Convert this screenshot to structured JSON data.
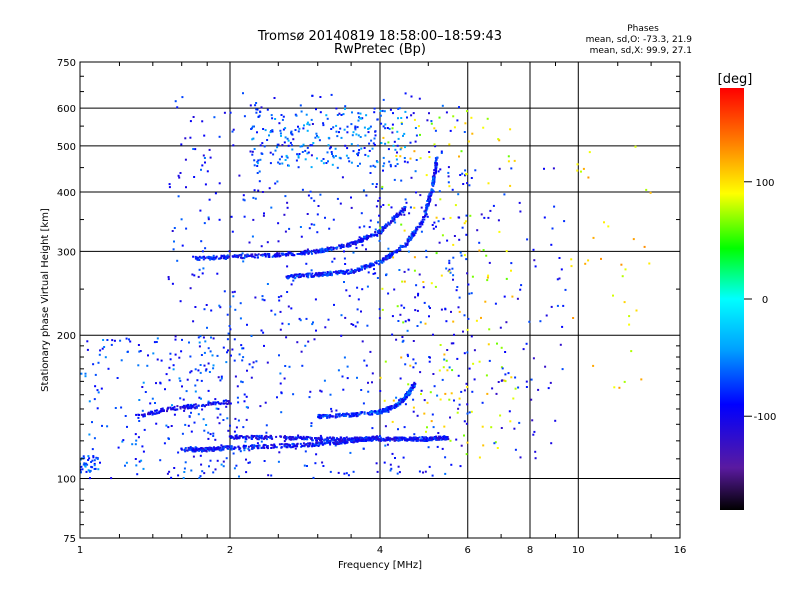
{
  "header": {
    "title": "Tromsø 20140819 18:58:00–18:59:43",
    "subtitle": "RwPretec (Bp)",
    "phases_title": "Phases",
    "phases_o": "mean, sd,O: -73.3, 21.9",
    "phases_x": "mean, sd,X:  99.9, 27.1"
  },
  "chart_data": {
    "type": "scatter",
    "xlabel": "Frequency [MHz]",
    "ylabel": "Stationary phase Virtual Height [km]",
    "xscale": "log",
    "yscale": "log",
    "xlim": [
      1,
      16
    ],
    "ylim": [
      75,
      750
    ],
    "x_ticks": [
      1,
      2,
      4,
      6,
      8,
      10,
      16
    ],
    "x_tick_labels": [
      "1",
      "2",
      "4",
      "6",
      "8",
      "10",
      "16"
    ],
    "x_gridlines": [
      2,
      4,
      6,
      8,
      10
    ],
    "y_ticks": [
      75,
      100,
      200,
      300,
      400,
      500,
      600,
      750
    ],
    "y_tick_labels": [
      "75",
      "100",
      "200",
      "300",
      "400",
      "500",
      "600",
      "750"
    ],
    "y_gridlines": [
      100,
      200,
      300,
      400,
      500,
      600
    ],
    "grid": true,
    "colorbar": {
      "label": "[deg]",
      "range": [
        -180,
        180
      ],
      "ticks": [
        100,
        0,
        -100
      ],
      "tick_labels": [
        "100",
        "0",
        "-100"
      ],
      "colors": [
        "#000000",
        "#5a1aa0",
        "#0000ff",
        "#00a0ff",
        "#00ffff",
        "#00ff00",
        "#ffff00",
        "#ff8000",
        "#ff0000"
      ]
    },
    "traces": [
      {
        "phase": -90,
        "spread": 0.006,
        "density": 3,
        "x": [
          1.7,
          2.0,
          2.5,
          3.0,
          3.5,
          4.0,
          4.5
        ],
        "y": [
          290,
          292,
          295,
          300,
          310,
          330,
          370
        ]
      },
      {
        "phase": -85,
        "spread": 0.006,
        "density": 3,
        "x": [
          2.6,
          3.0,
          3.5,
          4.0,
          4.5,
          4.9,
          5.1,
          5.2
        ],
        "y": [
          265,
          268,
          272,
          285,
          310,
          350,
          410,
          470
        ]
      },
      {
        "phase": -90,
        "spread": 0.006,
        "density": 3,
        "x": [
          1.6,
          1.8,
          2.0,
          2.5,
          3.0,
          3.5,
          4.0
        ],
        "y": [
          115,
          115,
          116,
          117,
          118,
          120,
          122
        ]
      },
      {
        "phase": -95,
        "spread": 0.006,
        "density": 3,
        "x": [
          2.0,
          2.5,
          3.0,
          3.5,
          4.0,
          4.5,
          5.0,
          5.5
        ],
        "y": [
          122,
          122,
          121,
          121,
          121,
          121,
          121,
          122
        ]
      },
      {
        "phase": -80,
        "spread": 0.006,
        "density": 3,
        "x": [
          3.0,
          3.5,
          4.0,
          4.3,
          4.5,
          4.7
        ],
        "y": [
          135,
          136,
          138,
          142,
          148,
          158
        ]
      },
      {
        "phase": -100,
        "spread": 0.006,
        "density": 2,
        "x": [
          1.3,
          1.5,
          1.7,
          2.0
        ],
        "y": [
          135,
          140,
          142,
          145
        ]
      }
    ],
    "clouds": [
      {
        "phase": -85,
        "count": 700,
        "xr": [
          1.5,
          6.0
        ],
        "yr": [
          100,
          650
        ]
      },
      {
        "phase": -75,
        "count": 200,
        "xr": [
          1.0,
          2.2
        ],
        "yr": [
          100,
          200
        ]
      },
      {
        "phase": 90,
        "count": 150,
        "xr": [
          4.0,
          7.5
        ],
        "yr": [
          110,
          600
        ]
      },
      {
        "phase": -95,
        "count": 120,
        "xr": [
          5.5,
          9.5
        ],
        "yr": [
          110,
          450
        ]
      },
      {
        "phase": 100,
        "count": 35,
        "xr": [
          9.5,
          14.0
        ],
        "yr": [
          150,
          500
        ]
      },
      {
        "phase": -60,
        "count": 220,
        "xr": [
          2.2,
          4.5
        ],
        "yr": [
          450,
          600
        ]
      },
      {
        "phase": -65,
        "count": 40,
        "xr": [
          1.0,
          1.1
        ],
        "yr": [
          103,
          112
        ]
      }
    ]
  }
}
